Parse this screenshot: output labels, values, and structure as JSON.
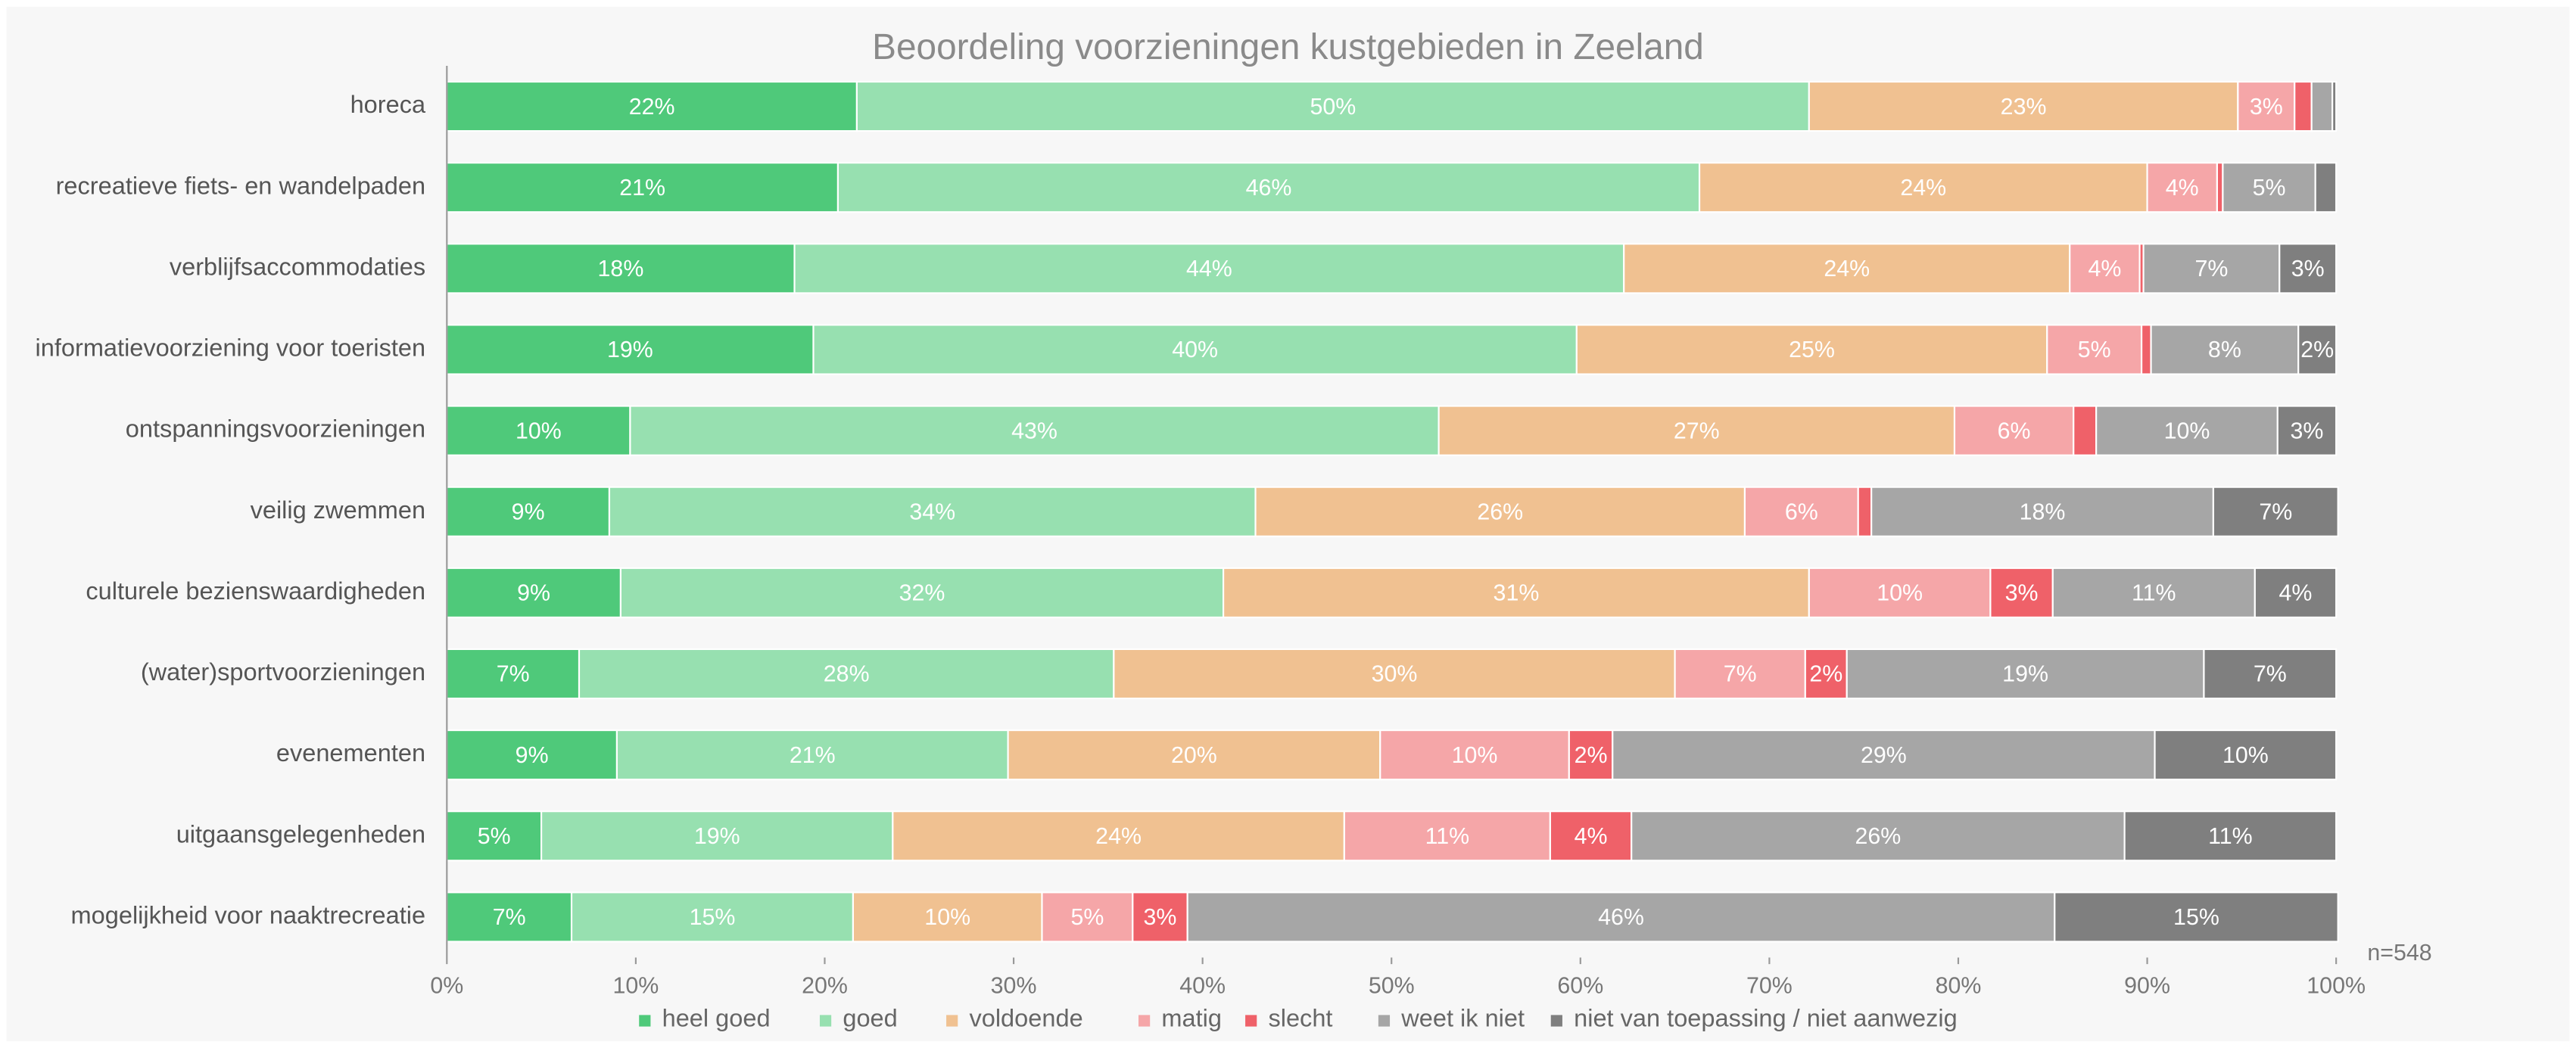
{
  "chart_data": {
    "type": "stacked-bar-horizontal",
    "title": "Beoordeling voorzieningen kustgebieden in Zeeland",
    "annotation": "n=548",
    "categories": [
      "horeca",
      "recreatieve fiets- en wandelpaden",
      "verblijfsaccommodaties",
      "informatievoorziening voor toeristen",
      "ontspanningsvoorzieningen",
      "veilig zwemmen",
      "culturele bezienswaardigheden",
      "(water)sportvoorzieningen",
      "evenementen",
      "uitgaansgelegenheden",
      "mogelijkheid voor naaktrecreatie"
    ],
    "series": [
      {
        "name": "heel goed",
        "color": "#4fc97a",
        "values": [
          21.7,
          20.7,
          18.4,
          19.4,
          9.7,
          8.6,
          9.2,
          7.0,
          9.0,
          5.0,
          6.6
        ],
        "value_labels": [
          "22%",
          "21%",
          "18%",
          "19%",
          "10%",
          "9%",
          "9%",
          "7%",
          "9%",
          "5%",
          "7%"
        ]
      },
      {
        "name": "goed",
        "color": "#97e0b0",
        "values": [
          50.4,
          45.6,
          43.9,
          40.4,
          42.8,
          34.2,
          31.9,
          28.3,
          20.7,
          18.6,
          14.9
        ],
        "value_labels": [
          "50%",
          "46%",
          "44%",
          "40%",
          "43%",
          "34%",
          "32%",
          "28%",
          "21%",
          "19%",
          "15%"
        ]
      },
      {
        "name": "voldoende",
        "color": "#f0c191",
        "values": [
          22.7,
          23.7,
          23.6,
          24.9,
          27.3,
          25.9,
          31.0,
          29.7,
          19.7,
          23.9,
          10.0
        ],
        "value_labels": [
          "23%",
          "24%",
          "24%",
          "25%",
          "27%",
          "26%",
          "31%",
          "30%",
          "20%",
          "24%",
          "10%"
        ]
      },
      {
        "name": "matig",
        "color": "#f5a6a8",
        "values": [
          3.0,
          3.7,
          3.7,
          5.0,
          6.3,
          6.0,
          9.6,
          6.9,
          10.0,
          10.9,
          4.8
        ],
        "value_labels": [
          "3%",
          "4%",
          "4%",
          "5%",
          "6%",
          "6%",
          "10%",
          "7%",
          "10%",
          "11%",
          "5%"
        ]
      },
      {
        "name": "slecht",
        "color": "#ef6169",
        "values": [
          0.9,
          0.3,
          0.2,
          0.5,
          1.2,
          0.7,
          3.3,
          2.2,
          2.3,
          4.3,
          2.9
        ],
        "value_labels": [
          null,
          null,
          null,
          null,
          null,
          null,
          "3%",
          "2%",
          "2%",
          "4%",
          "3%"
        ]
      },
      {
        "name": "weet ik niet",
        "color": "#a6a6a6",
        "values": [
          1.1,
          4.9,
          7.2,
          7.8,
          9.6,
          18.1,
          10.7,
          18.9,
          28.7,
          26.1,
          45.9
        ],
        "value_labels": [
          null,
          "5%",
          "7%",
          "8%",
          "10%",
          "18%",
          "11%",
          "19%",
          "29%",
          "26%",
          "46%"
        ]
      },
      {
        "name": "niet van toepassing / niet aanwezig",
        "color": "#7f7f7f",
        "values": [
          0.2,
          1.1,
          3.0,
          2.0,
          3.1,
          6.6,
          4.3,
          7.0,
          9.6,
          11.2,
          15.0
        ],
        "value_labels": [
          null,
          null,
          "3%",
          "2%",
          "3%",
          "7%",
          "4%",
          "7%",
          "10%",
          "11%",
          "15%"
        ]
      }
    ],
    "xlim": [
      0,
      100
    ],
    "xticks": [
      {
        "value": 0,
        "label": "0%"
      },
      {
        "value": 10,
        "label": "10%"
      },
      {
        "value": 20,
        "label": "20%"
      },
      {
        "value": 30,
        "label": "30%"
      },
      {
        "value": 40,
        "label": "40%"
      },
      {
        "value": 50,
        "label": "50%"
      },
      {
        "value": 60,
        "label": "60%"
      },
      {
        "value": 70,
        "label": "70%"
      },
      {
        "value": 80,
        "label": "80%"
      },
      {
        "value": 90,
        "label": "90%"
      },
      {
        "value": 100,
        "label": "100%"
      }
    ],
    "legend": "bottom"
  }
}
